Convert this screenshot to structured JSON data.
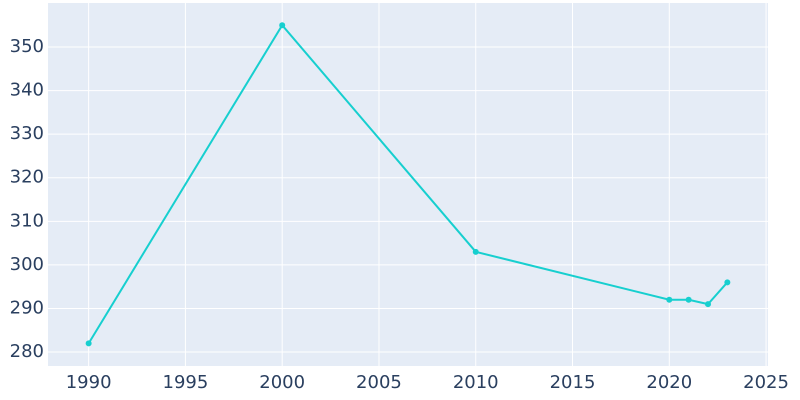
{
  "chart_data": {
    "type": "line",
    "x": [
      1990,
      2000,
      2010,
      2020,
      2021,
      2022,
      2023
    ],
    "series": [
      {
        "color": "#17cfcf",
        "values": [
          282,
          355,
          303,
          292,
          292,
          291,
          296
        ]
      }
    ],
    "xlim": [
      1987.9,
      2025.1
    ],
    "xticks": [
      1990,
      1995,
      2000,
      2005,
      2010,
      2015,
      2020,
      2025
    ],
    "ylim": [
      276.8,
      360.1
    ],
    "yticks": [
      280,
      290,
      300,
      310,
      320,
      330,
      340,
      350
    ],
    "grid": true
  }
}
